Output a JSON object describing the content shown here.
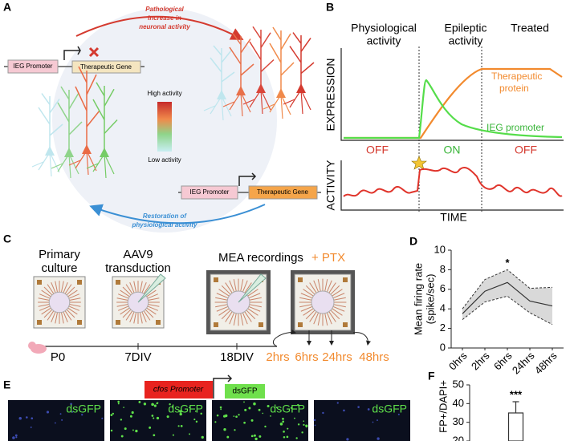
{
  "panel_a": {
    "label": "A",
    "top_arrow": [
      "Pathological",
      "increase in",
      "neuronal activity"
    ],
    "bottom_arrow": [
      "Restoration of",
      "physiological activity"
    ],
    "promoter_top": "IEG Promoter",
    "gene_top": "Therapeutic Gene",
    "legend_high": "High activity",
    "legend_low": "Low activity",
    "promoter_bottom": "IEG Promoter",
    "gene_bottom": "Therapeutic Gene"
  },
  "panel_b": {
    "label": "B",
    "phases": [
      [
        "Physiological",
        "activity"
      ],
      [
        "Epileptic",
        "activity"
      ],
      [
        "Treated"
      ]
    ],
    "y_top": "EXPRESSION",
    "y_bottom": "ACTIVITY",
    "x": "TIME",
    "protein": [
      "Therapeutic",
      "protein"
    ],
    "promoter": "IEG promoter",
    "states": [
      "OFF",
      "ON",
      "OFF"
    ]
  },
  "panel_c": {
    "label": "C",
    "steps": [
      [
        "Primary",
        "culture"
      ],
      [
        "AAV9",
        "transduction"
      ],
      [
        "MEA recordings"
      ]
    ],
    "ptx": "+ PTX",
    "timeline": [
      "P0",
      "7DIV",
      "18DIV"
    ],
    "times": [
      "2hrs",
      "6hrs",
      "24hrs",
      "48hrs"
    ]
  },
  "panel_e": {
    "label": "E",
    "promoter": "cfos Promoter",
    "reporter": "dsGFP",
    "images": [
      "dsGFP",
      "dsGFP",
      "dsGFP",
      "dsGFP"
    ]
  },
  "chart_data": [
    {
      "type": "line",
      "label": "D",
      "ylabel": [
        "Mean firing rate",
        "(spike/sec)"
      ],
      "categories": [
        "0hrs",
        "2hrs",
        "6hrs",
        "24hrs",
        "48hrs"
      ],
      "values": [
        3.5,
        5.8,
        6.7,
        4.8,
        4.3
      ],
      "upper": [
        4.0,
        7.0,
        8.0,
        6.1,
        6.2
      ],
      "lower": [
        2.9,
        4.7,
        5.3,
        3.6,
        2.4
      ],
      "color": "#333333",
      "band_color": "#d9d9d9",
      "annotation": {
        "text": "*",
        "category": "6hrs"
      },
      "ylim": [
        0,
        10
      ],
      "yticks": [
        0,
        2,
        4,
        6,
        8,
        10
      ]
    },
    {
      "type": "bar",
      "label": "F",
      "ylabel": "FP+/DAPI+",
      "categories": [
        null
      ],
      "values": [
        35
      ],
      "errors": [
        6
      ],
      "color": "#ffffff",
      "edge": "#333333",
      "annotation": {
        "text": "***",
        "category": 0
      },
      "ylim": [
        20,
        50
      ],
      "yticks": [
        20,
        30,
        40,
        50
      ]
    }
  ]
}
